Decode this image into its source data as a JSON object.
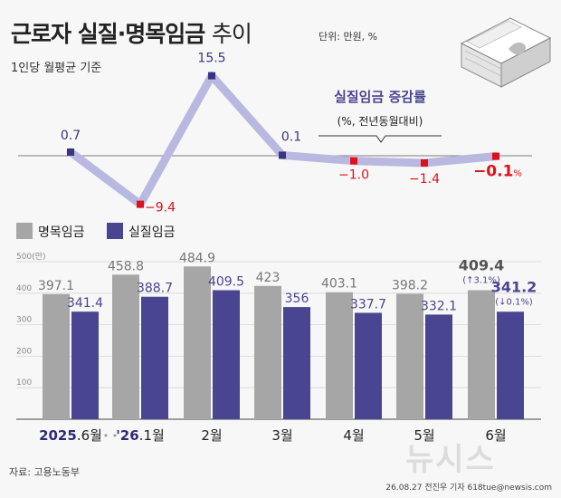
{
  "header": {
    "title": "근로자 실질·명목임금",
    "title_suffix": "추이",
    "unit": "단위: 만원, %",
    "basis": "1인당 월평균 기준"
  },
  "footer": {
    "source": "자료: 고용노동부",
    "credit": "26.08.27 전진우 기자 618tue@newsis.com",
    "watermark": "뉴시스"
  },
  "colors": {
    "nominal": "#a6a6a6",
    "real": "#4a4590",
    "line": "#b9b8e0",
    "marker_pos": "#3a3580",
    "marker_neg": "#e0101a",
    "neg_text": "#e0101a",
    "label_pos": "#3a3580"
  },
  "chart_data": [
    {
      "type": "line",
      "title": "실질임금 증감률",
      "subtitle": "(%, 전년동월대비)",
      "categories": [
        "2025.6월",
        "'26.1월",
        "2월",
        "3월",
        "4월",
        "5월",
        "6월"
      ],
      "values": [
        0.7,
        -9.4,
        15.5,
        0.1,
        -1.0,
        -1.4,
        -0.1
      ],
      "labels": [
        "0.7",
        "−9.4",
        "15.5",
        "0.1",
        "−1.0",
        "−1.4",
        "−0.1"
      ],
      "label_suffix_last": "%",
      "baseline": 0
    },
    {
      "type": "bar",
      "categories": [
        "2025.6월",
        "'26.1월",
        "2월",
        "3월",
        "4월",
        "5월",
        "6월"
      ],
      "category_parts": [
        {
          "main": "2025",
          "tail": ".6월",
          "highlight": true
        },
        {
          "main": "'26",
          "tail": ".1월",
          "highlight": true
        },
        {
          "main": "2월",
          "tail": "",
          "highlight": false
        },
        {
          "main": "3월",
          "tail": "",
          "highlight": false
        },
        {
          "main": "4월",
          "tail": "",
          "highlight": false
        },
        {
          "main": "5월",
          "tail": "",
          "highlight": false
        },
        {
          "main": "6월",
          "tail": "",
          "highlight": false
        }
      ],
      "series": [
        {
          "name": "명목임금",
          "values": [
            397.1,
            458.8,
            484.9,
            423,
            403.1,
            398.2,
            409.4
          ],
          "labels": [
            "397.1",
            "458.8",
            "484.9",
            "423",
            "403.1",
            "398.2",
            "409.4"
          ]
        },
        {
          "name": "실질임금",
          "values": [
            341.4,
            388.7,
            409.5,
            356,
            337.7,
            332.1,
            341.2
          ],
          "labels": [
            "341.4",
            "388.7",
            "409.5",
            "356",
            "337.7",
            "332.1",
            "341.2"
          ]
        }
      ],
      "last_changes": {
        "nominal": "(↑3.1%)",
        "real": "(↓0.1%)"
      },
      "axis_break": "• • •",
      "yticks": [
        100,
        200,
        300,
        400,
        500
      ],
      "ytick_labels": [
        "100",
        "200",
        "300",
        "400",
        "500(만)"
      ],
      "ylim": [
        0,
        500
      ],
      "grid": true
    }
  ]
}
